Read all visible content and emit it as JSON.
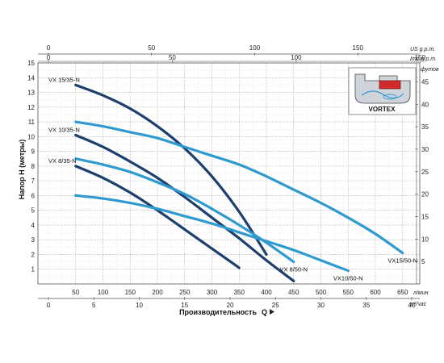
{
  "chart_data": {
    "type": "line",
    "xlabel": "Производительность",
    "xvar": "Q",
    "ylabel": "Напор H (метры)",
    "x_unit": "л/мин",
    "x2_unit": "м³/час",
    "top_unit_usgpm": "US g.p.m.",
    "top_unit_impgpm": "Imp g.p.m.",
    "y2_unit": "футов",
    "xlim": [
      0,
      700
    ],
    "ylim": [
      0,
      15
    ],
    "grid": true,
    "inset_label": "VORTEX",
    "x_ticks": [
      "50",
      "100",
      "150",
      "200",
      "250",
      "300",
      "350",
      "400",
      "450",
      "500",
      "550",
      "600",
      "650"
    ],
    "y_ticks": [
      "1",
      "2",
      "3",
      "4",
      "5",
      "6",
      "7",
      "8",
      "9",
      "10",
      "11",
      "12",
      "13",
      "14",
      "15"
    ],
    "x2_ticks": [
      "0",
      "5",
      "10",
      "15",
      "20",
      "25",
      "30",
      "35",
      "40"
    ],
    "top_us_ticks": [
      "0",
      "50",
      "100",
      "150"
    ],
    "top_imp_ticks": [
      "0",
      "50",
      "100",
      "150"
    ],
    "y2_ticks": [
      "5",
      "10",
      "15",
      "20",
      "25",
      "30",
      "35",
      "40",
      "45"
    ],
    "series": [
      {
        "name": "VX 15/35-N",
        "color": "#1c3f6e",
        "x": [
          50,
          100,
          150,
          200,
          250,
          300,
          350,
          400
        ],
        "y": [
          13.5,
          12.8,
          11.9,
          10.7,
          9.2,
          7.3,
          4.9,
          2.0
        ]
      },
      {
        "name": "VX 10/35-N",
        "color": "#1c3f6e",
        "x": [
          50,
          100,
          150,
          200,
          250,
          300,
          350,
          400,
          450
        ],
        "y": [
          10.1,
          9.3,
          8.3,
          7.2,
          5.9,
          4.5,
          3.1,
          1.6,
          0.2
        ]
      },
      {
        "name": "VX 8/35-N",
        "color": "#1c3f6e",
        "x": [
          50,
          100,
          150,
          200,
          250,
          300,
          350
        ],
        "y": [
          8.0,
          7.2,
          6.2,
          5.0,
          3.7,
          2.4,
          1.1
        ]
      },
      {
        "name": "VX 8/50-N",
        "color": "#2e9ad0",
        "x": [
          50,
          100,
          150,
          200,
          250,
          300,
          350,
          400,
          450
        ],
        "y": [
          8.5,
          8.1,
          7.6,
          6.9,
          6.1,
          5.1,
          4.0,
          2.8,
          1.5
        ]
      },
      {
        "name": "VX10/50-N",
        "color": "#2e9ad0",
        "x": [
          50,
          100,
          150,
          200,
          250,
          300,
          350,
          400,
          450,
          500,
          550
        ],
        "y": [
          6.0,
          5.8,
          5.5,
          5.1,
          4.6,
          4.1,
          3.5,
          2.9,
          2.3,
          1.6,
          0.9
        ]
      },
      {
        "name": "VX15/50-N",
        "color": "#2e9ad0",
        "x": [
          50,
          100,
          150,
          200,
          250,
          300,
          350,
          400,
          450,
          500,
          550,
          600,
          650
        ],
        "y": [
          11.0,
          10.7,
          10.3,
          9.9,
          9.3,
          8.7,
          8.1,
          7.3,
          6.4,
          5.5,
          4.5,
          3.4,
          2.1
        ]
      }
    ],
    "label_positions": [
      "left-top",
      "left-top",
      "left-top",
      "right-bottom",
      "right-bottom",
      "right-bottom"
    ]
  }
}
